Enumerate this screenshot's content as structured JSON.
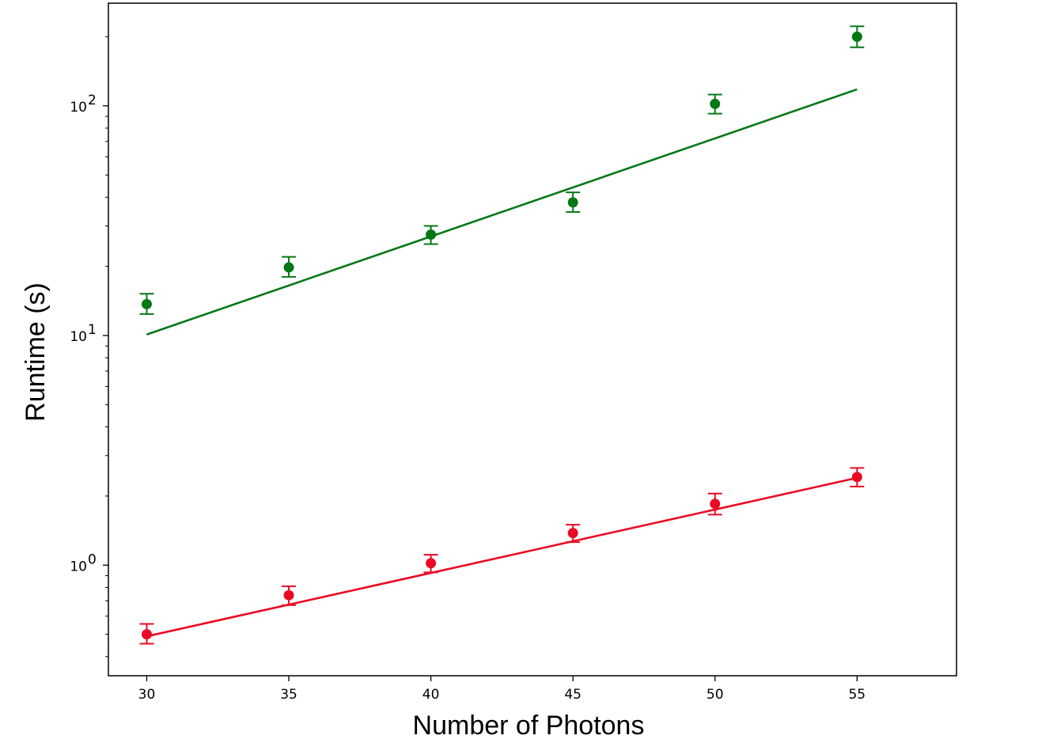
{
  "chart_data": {
    "type": "scatter",
    "title": "",
    "xlabel": "Number of Photons",
    "ylabel": "Runtime (s)",
    "yscale": "log",
    "grid": false,
    "legend": "none",
    "xlim": [
      28.65,
      58.5
    ],
    "ylim": [
      0.33,
      280
    ],
    "x_ticks": [
      30,
      35,
      40,
      45,
      50,
      55
    ],
    "x_tick_labels": [
      "30",
      "35",
      "40",
      "45",
      "50",
      "55"
    ],
    "y_ticks": [
      1,
      10,
      100
    ],
    "y_tick_labels": [
      {
        "base": "10",
        "exp": "0"
      },
      {
        "base": "10",
        "exp": "1"
      },
      {
        "base": "10",
        "exp": "2"
      }
    ],
    "series": [
      {
        "color": "#047817",
        "x": [
          30,
          35,
          40,
          45,
          50,
          55
        ],
        "y": [
          13.7,
          19.8,
          27.5,
          38,
          102,
          200
        ],
        "yerr_low": [
          12.4,
          18.0,
          25.0,
          34.5,
          92.5,
          180
        ],
        "yerr_high": [
          15.2,
          22.0,
          30.0,
          42.0,
          112,
          222
        ],
        "fit_x": [
          30,
          55
        ],
        "fit_y": [
          10.1,
          118
        ]
      },
      {
        "color": "#eb0a23",
        "x": [
          30,
          35,
          40,
          45,
          50,
          55
        ],
        "y": [
          0.5,
          0.74,
          1.02,
          1.38,
          1.85,
          2.42
        ],
        "yerr_low": [
          0.455,
          0.67,
          0.93,
          1.26,
          1.66,
          2.2
        ],
        "yerr_high": [
          0.555,
          0.81,
          1.11,
          1.5,
          2.05,
          2.65
        ],
        "fit_x": [
          30,
          55
        ],
        "fit_y": [
          0.49,
          2.4
        ]
      }
    ]
  }
}
